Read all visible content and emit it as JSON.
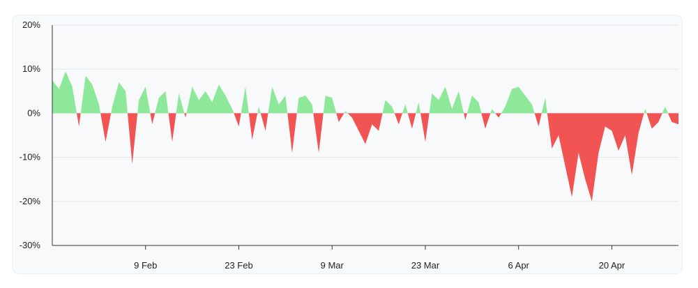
{
  "chart_data": {
    "type": "area",
    "title": "",
    "xlabel": "",
    "ylabel": "",
    "x_range": [
      "2025-01-26",
      "2025-04-30"
    ],
    "ylim": [
      -30,
      20
    ],
    "y_ticks": [
      "20%",
      "10%",
      "0%",
      "-10%",
      "-20%",
      "-30%"
    ],
    "y_tick_values": [
      20,
      10,
      0,
      -10,
      -20,
      -30
    ],
    "x_ticks": [
      {
        "date": "2025-02-09",
        "label": "9 Feb"
      },
      {
        "date": "2025-02-23",
        "label": "23 Feb"
      },
      {
        "date": "2025-03-09",
        "label": "9 Mar"
      },
      {
        "date": "2025-03-23",
        "label": "23 Mar"
      },
      {
        "date": "2025-04-06",
        "label": "6 Apr"
      },
      {
        "date": "2025-04-20",
        "label": "20 Apr"
      }
    ],
    "grid": true,
    "colors": {
      "positive": "#8ee89a",
      "negative": "#f25454",
      "axis": "#333333",
      "grid": "#e6e9ec"
    },
    "series": [
      {
        "x": [
          "2025-01-26",
          "2025-01-27",
          "2025-01-28",
          "2025-01-29",
          "2025-01-30",
          "2025-01-31",
          "2025-02-01",
          "2025-02-02",
          "2025-02-03",
          "2025-02-04",
          "2025-02-05",
          "2025-02-06",
          "2025-02-07",
          "2025-02-08",
          "2025-02-09",
          "2025-02-10",
          "2025-02-11",
          "2025-02-12",
          "2025-02-13",
          "2025-02-14",
          "2025-02-15",
          "2025-02-16",
          "2025-02-17",
          "2025-02-18",
          "2025-02-19",
          "2025-02-20",
          "2025-02-21",
          "2025-02-22",
          "2025-02-23",
          "2025-02-24",
          "2025-02-25",
          "2025-02-26",
          "2025-02-27",
          "2025-02-28",
          "2025-03-01",
          "2025-03-02",
          "2025-03-03",
          "2025-03-04",
          "2025-03-05",
          "2025-03-06",
          "2025-03-07",
          "2025-03-08",
          "2025-03-09",
          "2025-03-10",
          "2025-03-11",
          "2025-03-12",
          "2025-03-13",
          "2025-03-14",
          "2025-03-15",
          "2025-03-16",
          "2025-03-17",
          "2025-03-18",
          "2025-03-19",
          "2025-03-20",
          "2025-03-21",
          "2025-03-22",
          "2025-03-23",
          "2025-03-24",
          "2025-03-25",
          "2025-03-26",
          "2025-03-27",
          "2025-03-28",
          "2025-03-29",
          "2025-03-30",
          "2025-03-31",
          "2025-04-01",
          "2025-04-02",
          "2025-04-03",
          "2025-04-04",
          "2025-04-05",
          "2025-04-06",
          "2025-04-07",
          "2025-04-08",
          "2025-04-09",
          "2025-04-10",
          "2025-04-11",
          "2025-04-12",
          "2025-04-13",
          "2025-04-14",
          "2025-04-15",
          "2025-04-16",
          "2025-04-17",
          "2025-04-18",
          "2025-04-19",
          "2025-04-20",
          "2025-04-21",
          "2025-04-22",
          "2025-04-23",
          "2025-04-24",
          "2025-04-25",
          "2025-04-26",
          "2025-04-27",
          "2025-04-28",
          "2025-04-29",
          "2025-04-30"
        ],
        "values": [
          7.5,
          5.5,
          9.5,
          6.0,
          -3.0,
          8.5,
          6.5,
          2.0,
          -6.5,
          1.5,
          7.0,
          5.0,
          -11.5,
          3.0,
          6.0,
          -2.5,
          3.5,
          5.0,
          -6.5,
          4.5,
          -1.0,
          6.0,
          3.0,
          5.0,
          2.5,
          6.5,
          4.0,
          1.0,
          -3.0,
          6.0,
          -6.0,
          1.5,
          -4.0,
          6.0,
          2.0,
          4.0,
          -9.0,
          3.5,
          4.0,
          2.0,
          -9.0,
          4.0,
          3.5,
          -2.0,
          0.5,
          -1.0,
          -4.0,
          -7.0,
          -2.5,
          -4.0,
          3.0,
          1.5,
          -2.5,
          2.0,
          -3.5,
          2.5,
          -6.5,
          4.5,
          3.0,
          6.0,
          1.0,
          5.0,
          -1.5,
          4.0,
          2.5,
          -3.5,
          1.0,
          -1.0,
          1.5,
          5.5,
          6.0,
          4.0,
          2.0,
          -3.0,
          3.5,
          -8.0,
          -5.0,
          -12.0,
          -19.0,
          -9.0,
          -15.0,
          -20.0,
          -9.0,
          -3.0,
          -4.0,
          -8.5,
          -5.0,
          -14.0,
          -4.5,
          1.0,
          -3.5,
          -2.0,
          1.5,
          -2.0,
          -2.5
        ]
      }
    ]
  }
}
